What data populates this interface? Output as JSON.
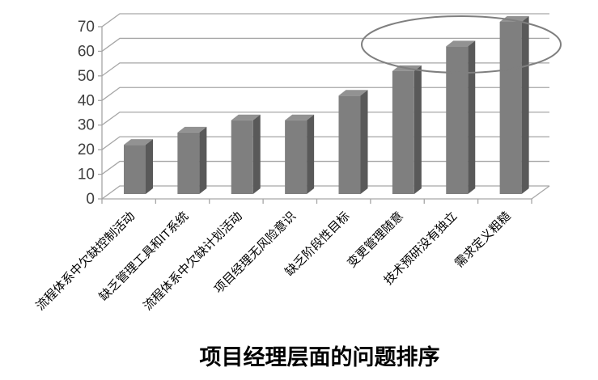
{
  "chart_data": {
    "type": "bar",
    "style": "3d-column",
    "title": "项目经理层面的问题排序",
    "categories": [
      "流程体系中欠缺控制活动",
      "缺乏管理工具和IT系统",
      "流程体系中欠缺计划活动",
      "项目经理无风险意识",
      "缺乏阶段性目标",
      "变更管理随意",
      "技术预研没有独立",
      "需求定义粗糙"
    ],
    "values": [
      20,
      25,
      30,
      30,
      40,
      50,
      60,
      70
    ],
    "y_ticks": [
      0,
      10,
      20,
      30,
      40,
      50,
      60,
      70
    ],
    "ylim": [
      0,
      70
    ],
    "xlabel": "",
    "ylabel": "",
    "grid": true,
    "legend": "none",
    "annotation": {
      "shape": "ellipse",
      "circled_categories": [
        "技术预研没有独立",
        "需求定义粗糙"
      ],
      "circled_values": [
        60,
        70
      ]
    },
    "colors": {
      "bar_front": "#7f7f7f",
      "bar_side": "#595959",
      "bar_top": "#929292",
      "gridline": "#a6a6a6",
      "axis": "#a6a6a6",
      "tick_label": "#3f3f3f",
      "category_label": "#000000",
      "title": "#000000",
      "ellipse": "#7f7f7f"
    }
  }
}
